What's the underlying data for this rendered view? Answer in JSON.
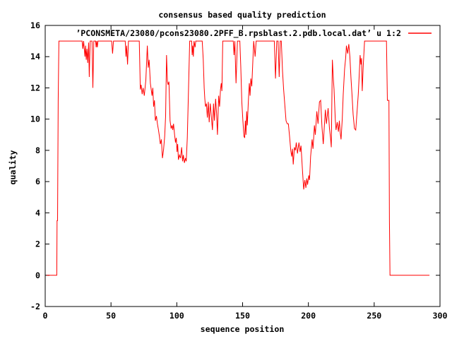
{
  "title": "consensus based quality prediction",
  "colors": {
    "background": "#ffffff",
    "border": "#000000",
    "text": "#000000",
    "series": "#ff0000"
  },
  "chart_data": {
    "type": "line",
    "title": "consensus based quality prediction",
    "xlabel": "sequence position",
    "ylabel": "quality",
    "xlim": [
      0,
      300
    ],
    "ylim": [
      -2,
      16
    ],
    "xticks": [
      0,
      50,
      100,
      150,
      200,
      250,
      300
    ],
    "yticks": [
      -2,
      0,
      2,
      4,
      6,
      8,
      10,
      12,
      14,
      16
    ],
    "grid": false,
    "legend_position": "top-right-inside",
    "legend": {
      "label": "’PCONSMETA/23080/pcons23080.2PFF_B.rpsblast.2.pdb.local.dat’ u 1:2"
    },
    "series": [
      {
        "name": "quality prediction",
        "color": "#ff0000",
        "points": [
          [
            1,
            0
          ],
          [
            8.8,
            0
          ],
          [
            9.0,
            3.5
          ],
          [
            9.4,
            3.5
          ],
          [
            9.9,
            11.2
          ],
          [
            10.4,
            15
          ],
          [
            28.0,
            15
          ],
          [
            28.6,
            14.5
          ],
          [
            29.2,
            15
          ],
          [
            30.2,
            14.0
          ],
          [
            30.7,
            14.7
          ],
          [
            31.2,
            13.8
          ],
          [
            31.7,
            14.5
          ],
          [
            32.3,
            13.6
          ],
          [
            33.0,
            14.9
          ],
          [
            33.5,
            12.7
          ],
          [
            34.2,
            15
          ],
          [
            35.6,
            15
          ],
          [
            36.2,
            12.0
          ],
          [
            36.9,
            15
          ],
          [
            38.3,
            15
          ],
          [
            38.7,
            14.6
          ],
          [
            39.1,
            15
          ],
          [
            39.6,
            14.6
          ],
          [
            40.1,
            15
          ],
          [
            50.5,
            15
          ],
          [
            51.2,
            14.2
          ],
          [
            51.9,
            15
          ],
          [
            60.8,
            15
          ],
          [
            61.4,
            14.0
          ],
          [
            61.9,
            14.7
          ],
          [
            62.6,
            13.5
          ],
          [
            63.3,
            15
          ],
          [
            71.5,
            15
          ],
          [
            72.3,
            11.9
          ],
          [
            72.9,
            12.2
          ],
          [
            73.7,
            11.6
          ],
          [
            74.4,
            12.0
          ],
          [
            75.3,
            11.5
          ],
          [
            76.5,
            12.5
          ],
          [
            77.6,
            14.7
          ],
          [
            78.3,
            13.3
          ],
          [
            79.0,
            13.8
          ],
          [
            79.9,
            12.3
          ],
          [
            81.2,
            11.5
          ],
          [
            81.8,
            12.0
          ],
          [
            82.4,
            10.8
          ],
          [
            83.0,
            11.2
          ],
          [
            83.7,
            9.9
          ],
          [
            84.5,
            10.2
          ],
          [
            85.3,
            9.7
          ],
          [
            86.1,
            9.3
          ],
          [
            86.8,
            8.9
          ],
          [
            87.5,
            8.4
          ],
          [
            88.3,
            8.7
          ],
          [
            89.1,
            7.5
          ],
          [
            89.9,
            8.0
          ],
          [
            90.8,
            8.9
          ],
          [
            91.5,
            10.2
          ],
          [
            92.2,
            14.1
          ],
          [
            92.9,
            12.4
          ],
          [
            93.4,
            12.2
          ],
          [
            94.0,
            12.4
          ],
          [
            94.9,
            9.9
          ],
          [
            95.7,
            9.4
          ],
          [
            96.4,
            9.6
          ],
          [
            96.9,
            9.3
          ],
          [
            97.5,
            9.7
          ],
          [
            98.3,
            9.0
          ],
          [
            99.0,
            8.5
          ],
          [
            99.6,
            8.8
          ],
          [
            100.2,
            7.9
          ],
          [
            100.7,
            8.4
          ],
          [
            101.2,
            7.4
          ],
          [
            102.0,
            7.7
          ],
          [
            102.8,
            7.5
          ],
          [
            103.7,
            8.2
          ],
          [
            104.4,
            7.3
          ],
          [
            105.0,
            7.7
          ],
          [
            105.8,
            7.2
          ],
          [
            106.6,
            7.5
          ],
          [
            107.2,
            7.3
          ],
          [
            108.0,
            8.8
          ],
          [
            108.8,
            11.5
          ],
          [
            109.8,
            15
          ],
          [
            111.3,
            15
          ],
          [
            111.7,
            14.1
          ],
          [
            112.1,
            14.7
          ],
          [
            112.6,
            14.0
          ],
          [
            113.1,
            15
          ],
          [
            113.9,
            14.6
          ],
          [
            114.4,
            15
          ],
          [
            119.3,
            15
          ],
          [
            120.1,
            13.8
          ],
          [
            120.8,
            12.0
          ],
          [
            121.3,
            11.3
          ],
          [
            121.8,
            10.8
          ],
          [
            122.5,
            11.0
          ],
          [
            123.2,
            10.1
          ],
          [
            123.9,
            11.1
          ],
          [
            124.6,
            9.8
          ],
          [
            125.4,
            11.0
          ],
          [
            126.2,
            10.2
          ],
          [
            127.1,
            9.3
          ],
          [
            127.9,
            11.0
          ],
          [
            128.6,
            9.9
          ],
          [
            129.5,
            11.3
          ],
          [
            130.2,
            10.4
          ],
          [
            130.9,
            9.0
          ],
          [
            131.8,
            11.5
          ],
          [
            132.5,
            10.8
          ],
          [
            133.2,
            11.9
          ],
          [
            133.8,
            12.3
          ],
          [
            134.3,
            11.8
          ],
          [
            134.9,
            15
          ],
          [
            142.9,
            15
          ],
          [
            143.5,
            14.1
          ],
          [
            144.1,
            15
          ],
          [
            145.0,
            12.3
          ],
          [
            146.1,
            15
          ],
          [
            147.9,
            15
          ],
          [
            148.6,
            13.4
          ],
          [
            149.4,
            11.1
          ],
          [
            150.2,
            9.9
          ],
          [
            151.0,
            8.9
          ],
          [
            151.6,
            8.8
          ],
          [
            152.1,
            9.9
          ],
          [
            152.6,
            9.0
          ],
          [
            153.1,
            10.5
          ],
          [
            153.6,
            9.6
          ],
          [
            154.3,
            11.0
          ],
          [
            155.1,
            12.3
          ],
          [
            155.7,
            11.5
          ],
          [
            156.3,
            12.6
          ],
          [
            157.0,
            12.1
          ],
          [
            157.8,
            13.7
          ],
          [
            158.4,
            15
          ],
          [
            159.5,
            14.0
          ],
          [
            160.3,
            15
          ],
          [
            174.1,
            15
          ],
          [
            175.0,
            12.6
          ],
          [
            176.0,
            15
          ],
          [
            177.0,
            15
          ],
          [
            177.8,
            12.7
          ],
          [
            178.6,
            15
          ],
          [
            179.4,
            15
          ],
          [
            180.3,
            13.1
          ],
          [
            181.2,
            11.9
          ],
          [
            182.1,
            10.9
          ],
          [
            183.0,
            9.9
          ],
          [
            183.9,
            9.7
          ],
          [
            184.8,
            9.7
          ],
          [
            185.7,
            8.9
          ],
          [
            186.6,
            8.0
          ],
          [
            187.3,
            7.6
          ],
          [
            187.9,
            8.1
          ],
          [
            188.5,
            7.1
          ],
          [
            189.4,
            8.2
          ],
          [
            190.1,
            8.0
          ],
          [
            190.8,
            8.5
          ],
          [
            191.7,
            7.8
          ],
          [
            192.8,
            8.5
          ],
          [
            193.7,
            7.9
          ],
          [
            194.4,
            8.3
          ],
          [
            195.5,
            6.7
          ],
          [
            196.4,
            5.5
          ],
          [
            197.3,
            6.1
          ],
          [
            198.1,
            5.6
          ],
          [
            198.8,
            6.2
          ],
          [
            199.4,
            5.8
          ],
          [
            200.3,
            6.4
          ],
          [
            200.9,
            6.1
          ],
          [
            201.7,
            7.6
          ],
          [
            202.8,
            8.7
          ],
          [
            203.5,
            8.1
          ],
          [
            204.6,
            9.6
          ],
          [
            205.3,
            9.0
          ],
          [
            206.4,
            10.5
          ],
          [
            207.3,
            9.7
          ],
          [
            208.4,
            11.1
          ],
          [
            209.3,
            11.2
          ],
          [
            210.3,
            9.5
          ],
          [
            211.3,
            8.4
          ],
          [
            212.9,
            10.6
          ],
          [
            213.7,
            9.7
          ],
          [
            215.0,
            10.7
          ],
          [
            216.0,
            9.4
          ],
          [
            216.8,
            8.8
          ],
          [
            217.4,
            8.2
          ],
          [
            218.2,
            13.8
          ],
          [
            219.0,
            12.5
          ],
          [
            219.5,
            11.9
          ],
          [
            220.4,
            10.0
          ],
          [
            221.0,
            9.3
          ],
          [
            221.9,
            9.8
          ],
          [
            222.8,
            9.2
          ],
          [
            223.5,
            9.9
          ],
          [
            224.2,
            9.1
          ],
          [
            224.8,
            8.7
          ],
          [
            225.7,
            10.0
          ],
          [
            226.5,
            11.6
          ],
          [
            227.5,
            13.2
          ],
          [
            228.3,
            13.9
          ],
          [
            228.9,
            14.7
          ],
          [
            229.8,
            14.2
          ],
          [
            230.7,
            14.8
          ],
          [
            231.5,
            14.0
          ],
          [
            232.4,
            12.6
          ],
          [
            233.2,
            11.5
          ],
          [
            234.0,
            10.3
          ],
          [
            235.0,
            9.4
          ],
          [
            236.0,
            9.3
          ],
          [
            237.0,
            10.5
          ],
          [
            237.9,
            11.6
          ],
          [
            238.6,
            12.8
          ],
          [
            239.3,
            14.1
          ],
          [
            239.9,
            13.5
          ],
          [
            240.4,
            13.9
          ],
          [
            240.9,
            11.8
          ],
          [
            241.6,
            13.3
          ],
          [
            242.7,
            15
          ],
          [
            259.3,
            15
          ],
          [
            260.0,
            11.2
          ],
          [
            261.2,
            11.2
          ],
          [
            261.6,
            3.5
          ],
          [
            262.0,
            0
          ],
          [
            292,
            0
          ]
        ]
      }
    ]
  }
}
